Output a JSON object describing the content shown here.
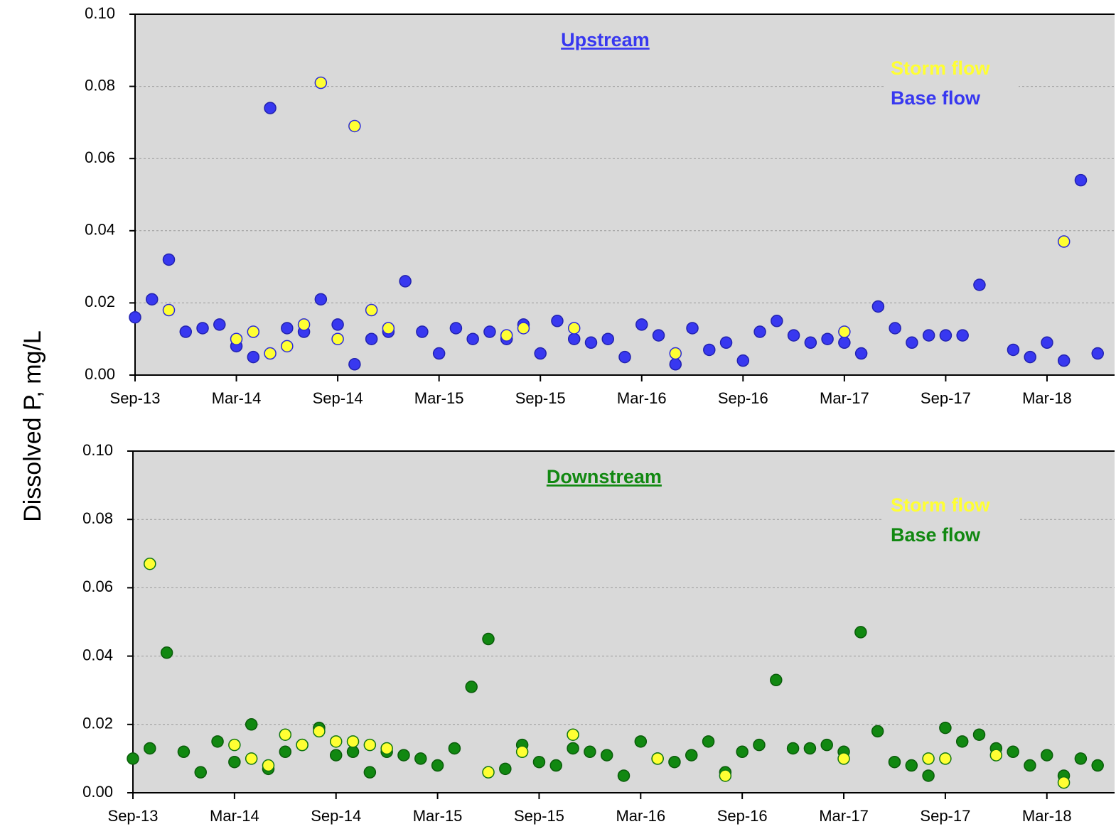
{
  "chart_data": [
    {
      "type": "scatter",
      "title": "Upstream",
      "ylabel": "Dissolved P, mg/L",
      "xlim": [
        "Sep-13",
        "Jul-18"
      ],
      "xticks": [
        "Sep-13",
        "Mar-14",
        "Sep-14",
        "Mar-15",
        "Sep-15",
        "Mar-16",
        "Sep-16",
        "Mar-17",
        "Sep-17",
        "Mar-18"
      ],
      "ylim": [
        0,
        0.1
      ],
      "yticks": [
        {
          "value": 0,
          "label": "0.00"
        },
        0.02,
        0.04,
        0.06,
        0.08,
        {
          "value": 0.1,
          "label": "0.10"
        }
      ],
      "grid": true,
      "legend": "top-right",
      "series": [
        {
          "name": "Storm flow",
          "color": "#ffff33",
          "edge": "#2b2bd9",
          "x": [
            "Nov-13",
            "Mar-14",
            "Apr-14",
            "May-14",
            "Jun-14",
            "Jul-14",
            "Aug-14",
            "Sep-14",
            "Oct-14",
            "Nov-14",
            "Dec-14",
            "Jul-15",
            "Aug-15",
            "Nov-15",
            "May-16",
            "Mar-17",
            "Apr-18"
          ],
          "values": [
            0.018,
            0.01,
            0.012,
            0.006,
            0.008,
            0.014,
            0.081,
            0.01,
            0.069,
            0.018,
            0.013,
            0.011,
            0.013,
            0.013,
            0.006,
            0.012,
            0.037
          ]
        },
        {
          "name": "Base flow",
          "color": "#3838f0",
          "edge": "#2222b0",
          "x": [
            "Sep-13",
            "Oct-13",
            "Nov-13",
            "Dec-13",
            "Jan-14",
            "Feb-14",
            "Mar-14",
            "Apr-14",
            "May-14",
            "Jun-14",
            "Jul-14",
            "Aug-14",
            "Sep-14",
            "Oct-14",
            "Nov-14",
            "Dec-14",
            "Jan-15",
            "Feb-15",
            "Mar-15",
            "Apr-15",
            "May-15",
            "Jun-15",
            "Jul-15",
            "Aug-15",
            "Sep-15",
            "Oct-15",
            "Nov-15",
            "Dec-15",
            "Jan-16",
            "Feb-16",
            "Mar-16",
            "Apr-16",
            "May-16",
            "Jun-16",
            "Jul-16",
            "Aug-16",
            "Sep-16",
            "Oct-16",
            "Nov-16",
            "Dec-16",
            "Jan-17",
            "Feb-17",
            "Mar-17",
            "Apr-17",
            "May-17",
            "Jun-17",
            "Jul-17",
            "Aug-17",
            "Sep-17",
            "Oct-17",
            "Nov-17",
            "Jan-18",
            "Feb-18",
            "Mar-18",
            "Apr-18",
            "May-18",
            "Jun-18"
          ],
          "values": [
            0.016,
            0.021,
            0.032,
            0.012,
            0.013,
            0.014,
            0.008,
            0.005,
            0.074,
            0.013,
            0.012,
            0.021,
            0.014,
            0.003,
            0.01,
            0.012,
            0.026,
            0.012,
            0.006,
            0.013,
            0.01,
            0.012,
            0.01,
            0.014,
            0.006,
            0.015,
            0.01,
            0.009,
            0.01,
            0.005,
            0.014,
            0.011,
            0.003,
            0.013,
            0.007,
            0.009,
            0.004,
            0.012,
            0.015,
            0.011,
            0.009,
            0.01,
            0.009,
            0.006,
            0.019,
            0.013,
            0.009,
            0.011,
            0.011,
            0.011,
            0.025,
            0.007,
            0.005,
            0.009,
            0.004,
            0.054,
            0.006
          ]
        }
      ]
    },
    {
      "type": "scatter",
      "title": "Downstream",
      "xlim": [
        "Sep-13",
        "Jul-18"
      ],
      "xticks": [
        "Sep-13",
        "Mar-14",
        "Sep-14",
        "Mar-15",
        "Sep-15",
        "Mar-16",
        "Sep-16",
        "Mar-17",
        "Sep-17",
        "Mar-18"
      ],
      "ylim": [
        0,
        0.1
      ],
      "yticks": [
        {
          "value": 0,
          "label": "0.00"
        },
        0.02,
        0.04,
        0.06,
        0.08,
        {
          "value": 0.1,
          "label": "0.10"
        }
      ],
      "grid": true,
      "legend": "top-right",
      "series": [
        {
          "name": "Storm flow",
          "color": "#ffff33",
          "edge": "#117711",
          "x": [
            "Oct-13",
            "Mar-14",
            "Apr-14",
            "May-14",
            "Jun-14",
            "Jul-14",
            "Aug-14",
            "Sep-14",
            "Oct-14",
            "Nov-14",
            "Dec-14",
            "Jun-15",
            "Aug-15",
            "Nov-15",
            "Apr-16",
            "Aug-16",
            "Mar-17",
            "Aug-17",
            "Sep-17",
            "Dec-17",
            "Apr-18"
          ],
          "values": [
            0.067,
            0.014,
            0.01,
            0.008,
            0.017,
            0.014,
            0.018,
            0.015,
            0.015,
            0.014,
            0.013,
            0.006,
            0.012,
            0.017,
            0.01,
            0.005,
            0.01,
            0.01,
            0.01,
            0.011,
            0.003
          ]
        },
        {
          "name": "Base flow",
          "color": "#118811",
          "edge": "#0a5c0a",
          "x": [
            "Sep-13",
            "Oct-13",
            "Nov-13",
            "Dec-13",
            "Jan-14",
            "Feb-14",
            "Mar-14",
            "Apr-14",
            "May-14",
            "Jun-14",
            "Jul-14",
            "Aug-14",
            "Sep-14",
            "Oct-14",
            "Nov-14",
            "Dec-14",
            "Jan-15",
            "Feb-15",
            "Mar-15",
            "Apr-15",
            "May-15",
            "Jun-15",
            "Jul-15",
            "Aug-15",
            "Sep-15",
            "Oct-15",
            "Nov-15",
            "Dec-15",
            "Jan-16",
            "Feb-16",
            "Mar-16",
            "Apr-16",
            "May-16",
            "Jun-16",
            "Jul-16",
            "Aug-16",
            "Sep-16",
            "Oct-16",
            "Nov-16",
            "Dec-16",
            "Jan-17",
            "Feb-17",
            "Mar-17",
            "Apr-17",
            "May-17",
            "Jun-17",
            "Jul-17",
            "Aug-17",
            "Sep-17",
            "Oct-17",
            "Nov-17",
            "Dec-17",
            "Jan-18",
            "Feb-18",
            "Mar-18",
            "Apr-18",
            "May-18",
            "Jun-18"
          ],
          "values": [
            0.01,
            0.013,
            0.041,
            0.012,
            0.006,
            0.015,
            0.009,
            0.02,
            0.007,
            0.012,
            0.014,
            0.019,
            0.011,
            0.012,
            0.006,
            0.012,
            0.011,
            0.01,
            0.008,
            0.013,
            0.031,
            0.045,
            0.007,
            0.014,
            0.009,
            0.008,
            0.013,
            0.012,
            0.011,
            0.005,
            0.015,
            0.01,
            0.009,
            0.011,
            0.015,
            0.006,
            0.012,
            0.014,
            0.033,
            0.013,
            0.013,
            0.014,
            0.012,
            0.047,
            0.018,
            0.009,
            0.008,
            0.005,
            0.019,
            0.015,
            0.017,
            0.013,
            0.012,
            0.008,
            0.011,
            0.005,
            0.01,
            0.008
          ]
        }
      ]
    }
  ]
}
